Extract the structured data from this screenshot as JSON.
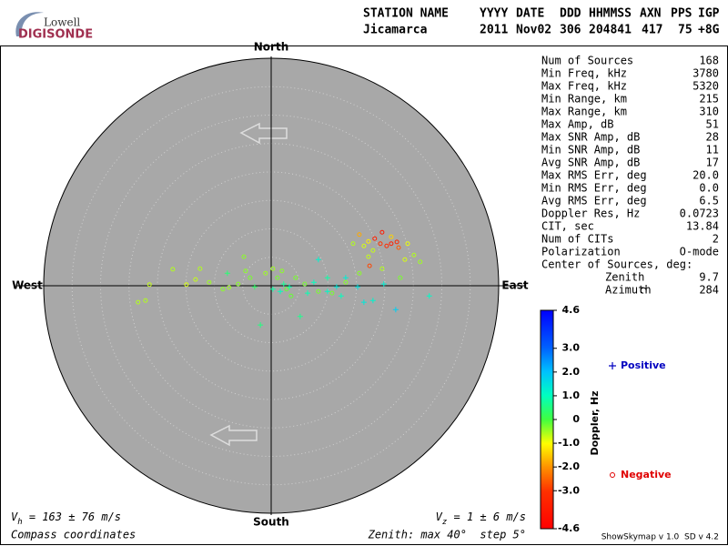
{
  "logo": {
    "top": "Lowell",
    "bottom": "DIGISONDE"
  },
  "header": {
    "labels": [
      "STATION NAME",
      "YYYY",
      "DATE",
      "DDD",
      "HHMMSS",
      "AXN",
      "PPS",
      "IGP"
    ],
    "values": [
      "Jicamarca",
      "2011",
      "Nov02",
      "306",
      "204841",
      "417",
      "75",
      "+8G"
    ]
  },
  "stats": {
    "rows": [
      [
        "Num of Sources",
        "168"
      ],
      [
        "Min Freq, kHz",
        "3780"
      ],
      [
        "Max Freq, kHz",
        "5320"
      ],
      [
        "Min Range, km",
        "215"
      ],
      [
        "Max Range, km",
        "310"
      ],
      [
        "Max Amp, dB",
        "51"
      ],
      [
        "Max SNR Amp, dB",
        "28"
      ],
      [
        "Min SNR Amp, dB",
        "11"
      ],
      [
        "Avg SNR Amp, dB",
        "17"
      ],
      [
        "Max RMS Err, deg",
        "20.0"
      ],
      [
        "Min RMS Err, deg",
        "0.0"
      ],
      [
        "Avg RMS Err, deg",
        "6.5"
      ],
      [
        "Doppler Res, Hz",
        "0.0723"
      ],
      [
        "CIT, sec",
        "13.84"
      ],
      [
        "Num of CITs",
        "2"
      ],
      [
        "Polarization",
        "O-mode"
      ]
    ],
    "center_title": "Center of Sources, deg:",
    "center_rows": [
      [
        "Zenith",
        "9.7"
      ],
      [
        "Azimuth",
        "284"
      ]
    ]
  },
  "chart_data": {
    "type": "skymap",
    "directions": {
      "north": "North",
      "south": "South",
      "east": "East",
      "west": "West"
    },
    "zenith_max": 40,
    "zenith_step": 5,
    "zenith_label": "Zenith: max 40°  step 5°",
    "coordinates_label": "Compass coordinates",
    "vh": {
      "symbol": "V",
      "subscript": "h",
      "text": " = 163 ± 76 m/s"
    },
    "vz": {
      "symbol": "V",
      "subscript": "z",
      "text": " = 1 ± 6 m/s"
    },
    "colorbar": {
      "title": "Doppler, Hz",
      "lim": [
        -4.6,
        4.6
      ],
      "ticks": [
        4.6,
        {
          "value": 3,
          "label": "3.0"
        },
        {
          "value": 2,
          "label": "2.0"
        },
        {
          "value": 1,
          "label": "1.0"
        },
        0,
        {
          "value": -1,
          "label": "-1.0"
        },
        {
          "value": -2,
          "label": "-2.0"
        },
        {
          "value": -3,
          "label": "-3.0"
        },
        -4.6
      ]
    },
    "series": [
      {
        "name": "Positive",
        "marker": "plus",
        "color": "#0000c0",
        "x": [
          -1.9,
          0.3,
          1.6,
          3.2,
          5.1,
          7.5,
          8.3,
          9.9,
          11.5,
          12.3,
          13.1,
          15.2,
          16.3,
          17.9,
          19.8,
          21.9,
          27.8,
          -7.7,
          -2.9,
          2.2,
          6.4,
          9.9
        ],
        "y": [
          -6.9,
          -0.6,
          -1.0,
          -0.2,
          -5.4,
          0.6,
          4.6,
          -1.0,
          -0.2,
          -1.8,
          1.4,
          -0.2,
          -2.9,
          -2.6,
          0.3,
          -4.2,
          -1.8,
          2.2,
          -0.2,
          0.3,
          -1.3,
          1.4
        ],
        "doppler": [
          0.5,
          0.8,
          1.0,
          0.9,
          0.6,
          1.0,
          1.2,
          1.1,
          1.4,
          1.0,
          1.3,
          1.5,
          1.4,
          1.2,
          1.3,
          1.8,
          1.1,
          0.4,
          0.3,
          0.7,
          0.9,
          0.8
        ]
      },
      {
        "name": "Negative",
        "marker": "circle",
        "color": "#e00000",
        "x": [
          -23.4,
          -22.1,
          -21.4,
          -17.3,
          -14.9,
          -13.3,
          -12.5,
          -10.9,
          -8.5,
          -7.4,
          -5.8,
          -4.5,
          -3.7,
          -1.0,
          1.1,
          1.9,
          2.7,
          3.5,
          5.9,
          8.3,
          10.7,
          13.1,
          14.4,
          15.5,
          16.3,
          17.1,
          17.9,
          18.2,
          19.2,
          19.5,
          20.3,
          21.1,
          22.1,
          22.4,
          21.1,
          23.5,
          25.1,
          26.2,
          24.0,
          17.3,
          17.1,
          15.5,
          19.5,
          22.7,
          -4.8,
          0.3,
          4.3
        ],
        "y": [
          -2.9,
          -2.6,
          0.2,
          2.9,
          0.2,
          1.1,
          3.0,
          0.6,
          -0.6,
          -0.3,
          0.3,
          2.6,
          1.4,
          2.2,
          1.4,
          2.6,
          -0.6,
          -1.8,
          0.3,
          -1.0,
          -1.3,
          0.6,
          7.4,
          9.0,
          7.0,
          7.8,
          6.2,
          8.3,
          7.4,
          9.4,
          7.0,
          7.4,
          7.7,
          6.7,
          8.6,
          4.6,
          5.4,
          4.2,
          7.4,
          3.5,
          5.1,
          2.2,
          3.0,
          1.4,
          5.1,
          3.0,
          1.4
        ],
        "doppler": [
          -0.6,
          -0.6,
          -0.7,
          -0.6,
          -0.8,
          -0.7,
          -0.6,
          -0.5,
          -0.4,
          -0.5,
          -0.4,
          -0.4,
          -0.3,
          -0.5,
          -0.3,
          -0.4,
          -0.2,
          -0.2,
          -0.3,
          -0.3,
          -0.3,
          -0.4,
          -0.6,
          -1.8,
          -0.8,
          -1.2,
          -0.7,
          -3.5,
          -3.0,
          -3.8,
          -3.2,
          -3.6,
          -3.4,
          -2.6,
          -1.4,
          -0.8,
          -0.6,
          -0.5,
          -0.9,
          -2.8,
          -0.7,
          -0.4,
          -0.6,
          -0.3,
          -0.4,
          -0.5,
          -0.3
        ]
      }
    ]
  },
  "footer": "ShowSkymap v 1.0  SD v 4.2"
}
